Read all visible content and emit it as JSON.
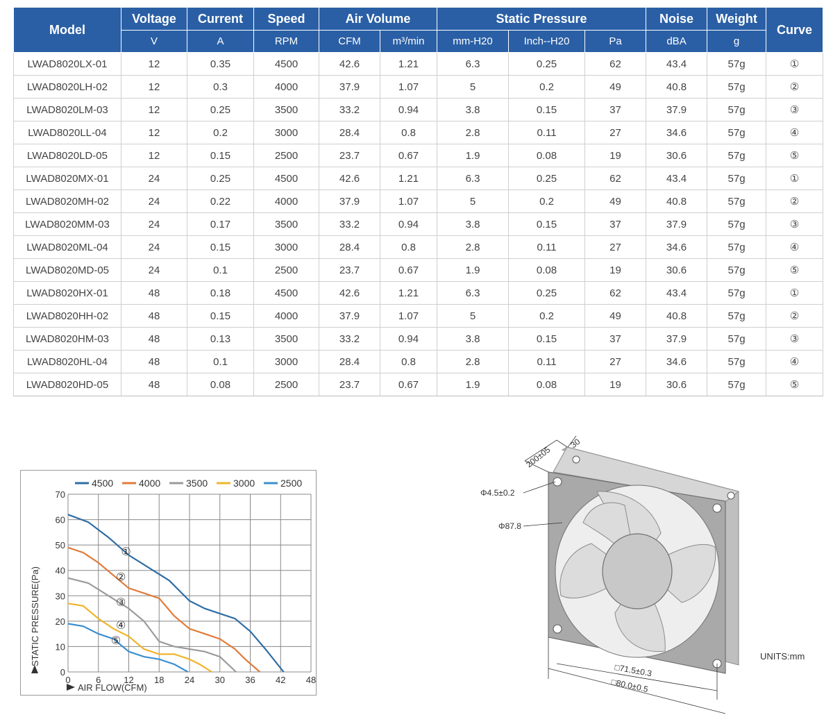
{
  "table": {
    "header_groups": [
      {
        "label": "Model"
      },
      {
        "label": "Voltage"
      },
      {
        "label": "Current"
      },
      {
        "label": "Speed"
      },
      {
        "label": "Air Volume"
      },
      {
        "label": "Static Pressure"
      },
      {
        "label": "Noise"
      },
      {
        "label": "Weight"
      },
      {
        "label": "Curve"
      }
    ],
    "units": [
      "V",
      "A",
      "RPM",
      "CFM",
      "m³/min",
      "mm-H20",
      "Inch--H20",
      "Pa",
      "dBA",
      "g"
    ],
    "rows": [
      [
        "LWAD8020LX-01",
        "12",
        "0.35",
        "4500",
        "42.6",
        "1.21",
        "6.3",
        "0.25",
        "62",
        "43.4",
        "57g",
        "①"
      ],
      [
        "LWAD8020LH-02",
        "12",
        "0.3",
        "4000",
        "37.9",
        "1.07",
        "5",
        "0.2",
        "49",
        "40.8",
        "57g",
        "②"
      ],
      [
        "LWAD8020LM-03",
        "12",
        "0.25",
        "3500",
        "33.2",
        "0.94",
        "3.8",
        "0.15",
        "37",
        "37.9",
        "57g",
        "③"
      ],
      [
        "LWAD8020LL-04",
        "12",
        "0.2",
        "3000",
        "28.4",
        "0.8",
        "2.8",
        "0.11",
        "27",
        "34.6",
        "57g",
        "④"
      ],
      [
        "LWAD8020LD-05",
        "12",
        "0.15",
        "2500",
        "23.7",
        "0.67",
        "1.9",
        "0.08",
        "19",
        "30.6",
        "57g",
        "⑤"
      ],
      [
        "LWAD8020MX-01",
        "24",
        "0.25",
        "4500",
        "42.6",
        "1.21",
        "6.3",
        "0.25",
        "62",
        "43.4",
        "57g",
        "①"
      ],
      [
        "LWAD8020MH-02",
        "24",
        "0.22",
        "4000",
        "37.9",
        "1.07",
        "5",
        "0.2",
        "49",
        "40.8",
        "57g",
        "②"
      ],
      [
        "LWAD8020MM-03",
        "24",
        "0.17",
        "3500",
        "33.2",
        "0.94",
        "3.8",
        "0.15",
        "37",
        "37.9",
        "57g",
        "③"
      ],
      [
        "LWAD8020ML-04",
        "24",
        "0.15",
        "3000",
        "28.4",
        "0.8",
        "2.8",
        "0.11",
        "27",
        "34.6",
        "57g",
        "④"
      ],
      [
        "LWAD8020MD-05",
        "24",
        "0.1",
        "2500",
        "23.7",
        "0.67",
        "1.9",
        "0.08",
        "19",
        "30.6",
        "57g",
        "⑤"
      ],
      [
        "LWAD8020HX-01",
        "48",
        "0.18",
        "4500",
        "42.6",
        "1.21",
        "6.3",
        "0.25",
        "62",
        "43.4",
        "57g",
        "①"
      ],
      [
        "LWAD8020HH-02",
        "48",
        "0.15",
        "4000",
        "37.9",
        "1.07",
        "5",
        "0.2",
        "49",
        "40.8",
        "57g",
        "②"
      ],
      [
        "LWAD8020HM-03",
        "48",
        "0.13",
        "3500",
        "33.2",
        "0.94",
        "3.8",
        "0.15",
        "37",
        "37.9",
        "57g",
        "③"
      ],
      [
        "LWAD8020HL-04",
        "48",
        "0.1",
        "3000",
        "28.4",
        "0.8",
        "2.8",
        "0.11",
        "27",
        "34.6",
        "57g",
        "④"
      ],
      [
        "LWAD8020HD-05",
        "48",
        "0.08",
        "2500",
        "23.7",
        "0.67",
        "1.9",
        "0.08",
        "19",
        "30.6",
        "57g",
        "⑤"
      ]
    ]
  },
  "chart_data": {
    "type": "line",
    "xlabel": "AIR FLOW(CFM)",
    "ylabel": "STATIC PRESSURE(Pa)",
    "x_ticks": [
      "0",
      "6",
      "12",
      "18",
      "24",
      "30",
      "36",
      "42",
      "48"
    ],
    "y_ticks": [
      "0",
      "10",
      "20",
      "30",
      "40",
      "50",
      "60",
      "70"
    ],
    "xlim": [
      0,
      48
    ],
    "ylim": [
      0,
      70
    ],
    "grid": true,
    "legend_position": "top",
    "series": [
      {
        "name": "4500",
        "label": "①",
        "color": "#2e6da4",
        "points": [
          [
            0,
            62
          ],
          [
            4,
            59
          ],
          [
            8,
            53
          ],
          [
            12,
            46
          ],
          [
            16,
            41
          ],
          [
            20,
            36
          ],
          [
            24,
            28
          ],
          [
            27,
            25
          ],
          [
            30,
            23
          ],
          [
            33,
            21
          ],
          [
            36,
            16
          ],
          [
            39,
            9
          ],
          [
            42.6,
            0
          ]
        ]
      },
      {
        "name": "4000",
        "label": "②",
        "color": "#e07b39",
        "points": [
          [
            0,
            49
          ],
          [
            3,
            47
          ],
          [
            6,
            43
          ],
          [
            9,
            38
          ],
          [
            12,
            33
          ],
          [
            15,
            31
          ],
          [
            18,
            29
          ],
          [
            21,
            22
          ],
          [
            24,
            17
          ],
          [
            27,
            15
          ],
          [
            30,
            13
          ],
          [
            33,
            9
          ],
          [
            35,
            5
          ],
          [
            37.9,
            0
          ]
        ]
      },
      {
        "name": "3500",
        "label": "③",
        "color": "#9a9a9a",
        "points": [
          [
            0,
            37
          ],
          [
            4,
            35
          ],
          [
            8,
            30
          ],
          [
            12,
            25
          ],
          [
            15,
            20
          ],
          [
            18,
            12
          ],
          [
            21,
            10
          ],
          [
            24,
            9
          ],
          [
            27,
            8
          ],
          [
            30,
            6
          ],
          [
            33.2,
            0
          ]
        ]
      },
      {
        "name": "3000",
        "label": "④",
        "color": "#f0b429",
        "points": [
          [
            0,
            27
          ],
          [
            3,
            26
          ],
          [
            6,
            21
          ],
          [
            9,
            17
          ],
          [
            12,
            14
          ],
          [
            15,
            9
          ],
          [
            18,
            7
          ],
          [
            21,
            7
          ],
          [
            24,
            5
          ],
          [
            26,
            3
          ],
          [
            28.4,
            0
          ]
        ]
      },
      {
        "name": "2500",
        "label": "⑤",
        "color": "#3a8fd0",
        "points": [
          [
            0,
            19
          ],
          [
            3,
            18
          ],
          [
            6,
            15
          ],
          [
            9,
            13
          ],
          [
            12,
            8
          ],
          [
            15,
            6
          ],
          [
            18,
            5
          ],
          [
            21,
            3
          ],
          [
            23.7,
            0
          ]
        ]
      }
    ]
  },
  "drawing": {
    "dims": {
      "cable": "200±05",
      "thickness": "30",
      "hole": "Φ4.5±0.2",
      "diameter": "Φ87.8",
      "hole_pitch": "□71.5±0.3",
      "frame": "□80.0±0.5"
    },
    "units_note": "UNITS:mm"
  }
}
